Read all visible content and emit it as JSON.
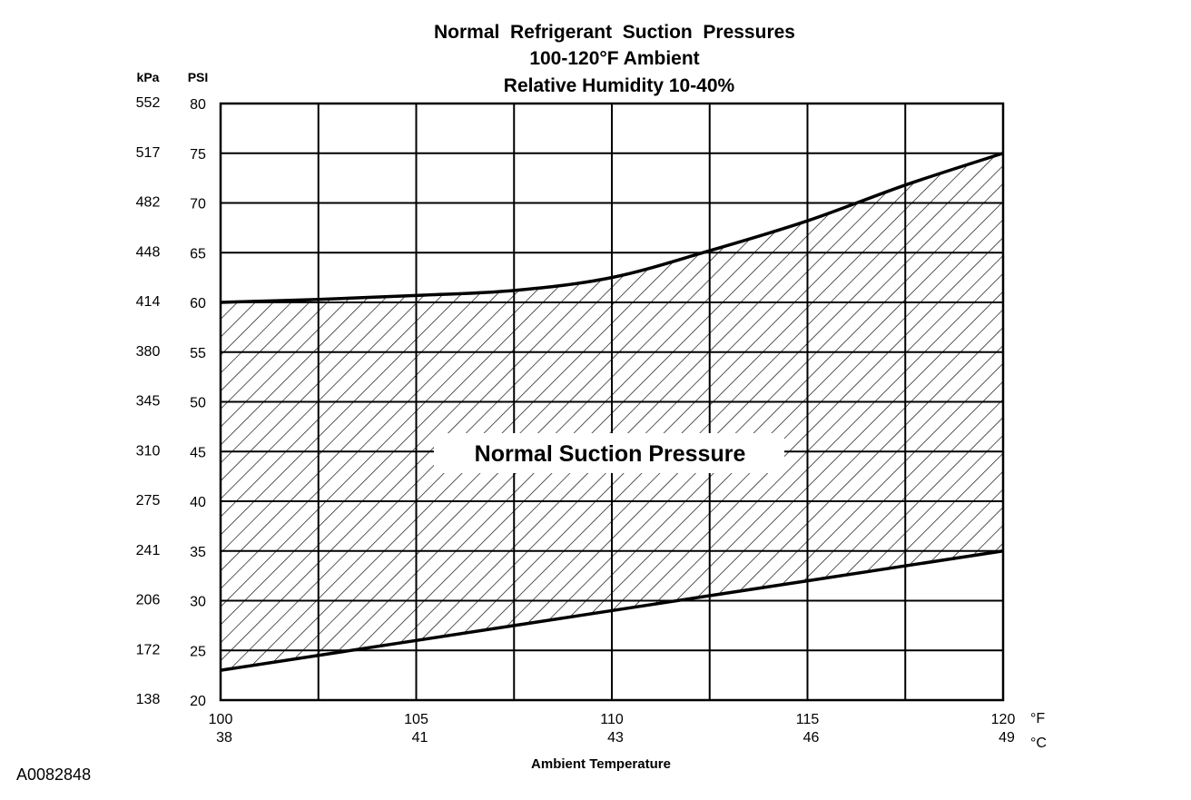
{
  "chart_data": {
    "type": "area",
    "title_lines": [
      "Normal  Refrigerant  Suction  Pressures",
      "100-120°F Ambient",
      "Relative Humidity 10-40%"
    ],
    "xlabel": "Ambient Temperature",
    "x_unit_primary": "°F",
    "x_unit_secondary": "°C",
    "y_unit_primary": "PSI",
    "y_unit_secondary": "kPa",
    "xlim": [
      100,
      120
    ],
    "ylim": [
      20,
      80
    ],
    "x_ticks_f": [
      100,
      105,
      110,
      115,
      120
    ],
    "x_ticks_c": [
      38,
      41,
      43,
      46,
      49
    ],
    "y_ticks_psi": [
      20,
      25,
      30,
      35,
      40,
      45,
      50,
      55,
      60,
      65,
      70,
      75,
      80
    ],
    "y_ticks_kpa": [
      138,
      172,
      206,
      241,
      275,
      310,
      345,
      380,
      414,
      448,
      482,
      517,
      552
    ],
    "grid": true,
    "band_label": "Normal Suction Pressure",
    "series": [
      {
        "name": "upper",
        "x": [
          100,
          102.5,
          105,
          107.5,
          110,
          112.5,
          115,
          117.5,
          120
        ],
        "values": [
          60,
          60.3,
          60.7,
          61.2,
          62.5,
          65.2,
          68.2,
          71.8,
          75
        ]
      },
      {
        "name": "lower",
        "x": [
          100,
          105,
          110,
          115,
          120
        ],
        "values": [
          23,
          26,
          29,
          32,
          35
        ]
      }
    ]
  },
  "footer": {
    "reference_id": "A0082848"
  }
}
